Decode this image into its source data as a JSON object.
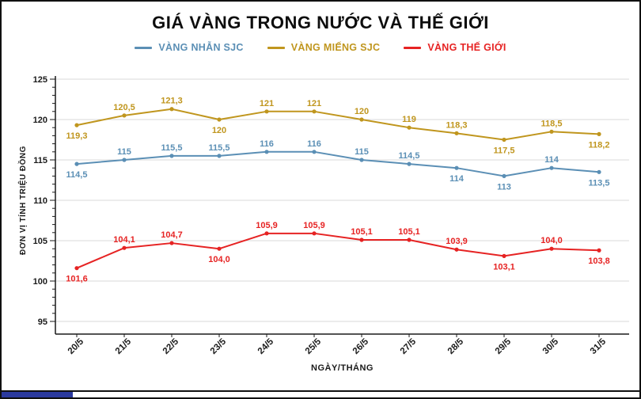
{
  "chart_data": {
    "type": "line",
    "title": "GIÁ VÀNG TRONG NƯỚC VÀ THẾ GIỚI",
    "xlabel": "NGÀY/THÁNG",
    "ylabel": "ĐƠN VỊ TÍNH TRIỆU ĐỒNG",
    "ylim": [
      95,
      125
    ],
    "yticks": [
      95,
      100,
      105,
      110,
      115,
      120,
      125
    ],
    "grid": true,
    "legend_position": "top",
    "axis_color": "#1a1a1a",
    "grid_color": "#d8d8d8",
    "text_color": "#1a1a1a",
    "categories": [
      "20/5",
      "21/5",
      "22/5",
      "23/5",
      "24/5",
      "25/5",
      "26/5",
      "27/5",
      "28/5",
      "29/5",
      "30/5",
      "31/5"
    ],
    "series": [
      {
        "name": "VÀNG NHẪN SJC",
        "color": "#5b8fb5",
        "values": [
          114.5,
          115,
          115.5,
          115.5,
          116,
          116,
          115,
          114.5,
          114,
          113,
          114,
          113.5
        ],
        "labels": [
          "114,5",
          "115",
          "115,5",
          "115,5",
          "116",
          "116",
          "115",
          "114,5",
          "114",
          "113",
          "114",
          "113,5"
        ],
        "label_pos": [
          "below",
          "above",
          "above",
          "above",
          "above",
          "above",
          "above",
          "above",
          "below",
          "below",
          "above",
          "below"
        ]
      },
      {
        "name": "VÀNG MIẾNG SJC",
        "color": "#c0961e",
        "values": [
          119.3,
          120.5,
          121.3,
          120,
          121,
          121,
          120,
          119,
          118.3,
          117.5,
          118.5,
          118.2
        ],
        "labels": [
          "119,3",
          "120,5",
          "121,3",
          "120",
          "121",
          "121",
          "120",
          "119",
          "118,3",
          "117,5",
          "118,5",
          "118,2"
        ],
        "label_pos": [
          "below",
          "above",
          "above",
          "below",
          "above",
          "above",
          "above",
          "above",
          "above",
          "below",
          "above",
          "below"
        ]
      },
      {
        "name": "VÀNG THẾ GIỚI",
        "color": "#e62323",
        "values": [
          101.6,
          104.1,
          104.7,
          104.0,
          105.9,
          105.9,
          105.1,
          105.1,
          103.9,
          103.1,
          104.0,
          103.8
        ],
        "labels": [
          "101,6",
          "104,1",
          "104,7",
          "104,0",
          "105,9",
          "105,9",
          "105,1",
          "105,1",
          "103,9",
          "103,1",
          "104,0",
          "103,8"
        ],
        "label_pos": [
          "below",
          "above",
          "above",
          "below",
          "above",
          "above",
          "above",
          "above",
          "above",
          "below",
          "above",
          "below"
        ]
      }
    ]
  },
  "footer": {
    "progress_color": "#2b3a9e"
  }
}
